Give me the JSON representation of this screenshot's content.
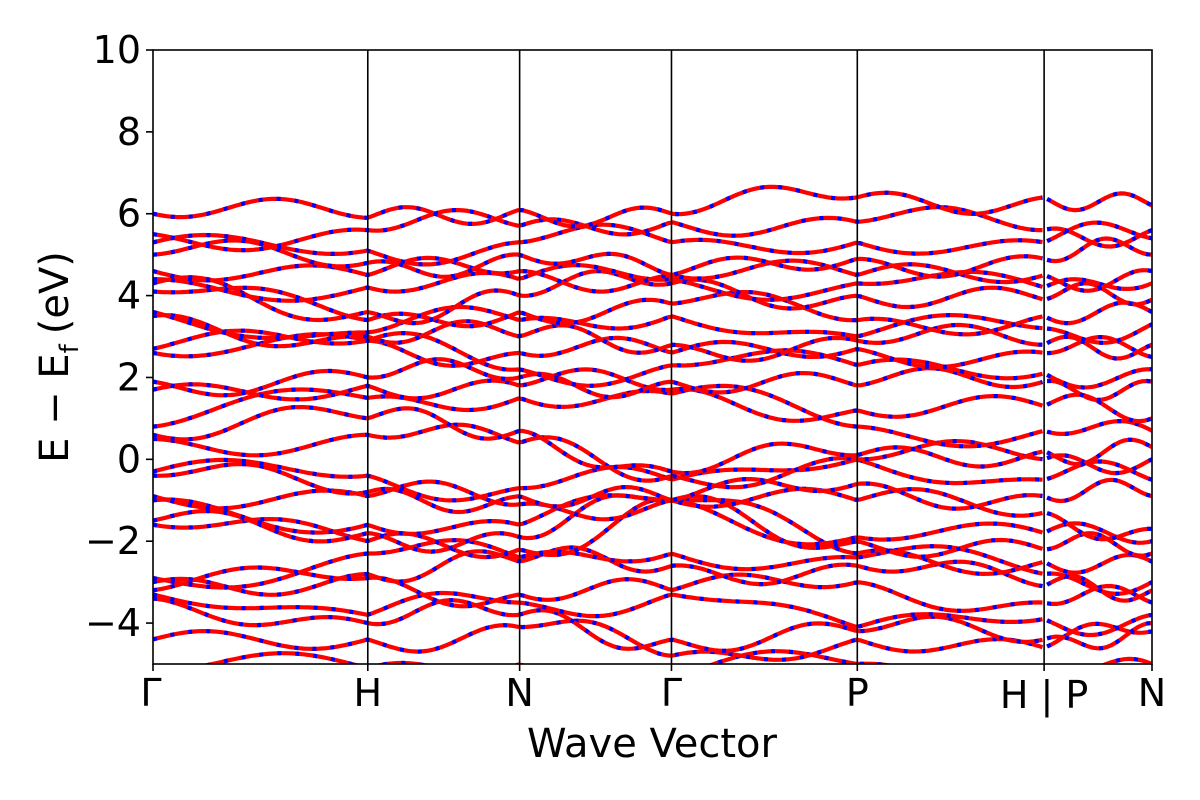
{
  "chart_data": {
    "type": "line",
    "title": "",
    "xlabel": "Wave Vector",
    "ylabel": {
      "main": "E − E",
      "subscript": "f",
      "unit": "(eV)"
    },
    "ylim": [
      -5,
      10
    ],
    "yticks": [
      -4,
      -2,
      0,
      2,
      4,
      6,
      8,
      10
    ],
    "ytick_labels": [
      "−4",
      "−2",
      "0",
      "2",
      "4",
      "6",
      "8",
      "10"
    ],
    "xlim": [
      0,
      1
    ],
    "kpoints": [
      {
        "label": "Γ",
        "x": 0.0
      },
      {
        "label": "H",
        "x": 0.215
      },
      {
        "label": "N",
        "x": 0.367
      },
      {
        "label": "Γ",
        "x": 0.519
      },
      {
        "label": "P",
        "x": 0.705
      },
      {
        "label": "H | P",
        "x": 0.892
      },
      {
        "label": "N",
        "x": 1.0
      }
    ],
    "segment_breaks": [
      0.892
    ],
    "series": [
      {
        "color": "#ff0000",
        "style": "solid"
      },
      {
        "color": "#0000ff",
        "style": "dashed"
      }
    ],
    "bands_at_kpoints": [
      [
        -5.2,
        -5.1,
        -5.0,
        -5.3,
        -5.0,
        -5.1,
        -5.0
      ],
      [
        -4.4,
        -4.4,
        -4.1,
        -4.8,
        -4.4,
        -4.6,
        -4.2
      ],
      [
        -3.4,
        -4.0,
        -3.8,
        -4.4,
        -4.2,
        -4.4,
        -4.0
      ],
      [
        -3.3,
        -3.8,
        -3.5,
        -3.3,
        -4.1,
        -3.9,
        -3.8
      ],
      [
        -3.2,
        -2.9,
        -3.3,
        -3.2,
        -3.0,
        -3.5,
        -3.5
      ],
      [
        -3.0,
        -2.8,
        -2.5,
        -2.6,
        -2.6,
        -3.1,
        -3.2
      ],
      [
        -2.9,
        -2.3,
        -2.4,
        -2.3,
        -2.4,
        -2.8,
        -3.0
      ],
      [
        -1.6,
        -2.0,
        -2.2,
        -1.0,
        -2.3,
        -2.5,
        -2.5
      ],
      [
        -1.5,
        -1.8,
        -1.9,
        -1.0,
        -2.0,
        -2.2,
        -2.3
      ],
      [
        -1.0,
        -1.6,
        -1.6,
        -1.0,
        -1.9,
        -1.8,
        -2.0
      ],
      [
        -0.9,
        -0.9,
        -1.1,
        -1.0,
        -1.0,
        -1.3,
        -1.7
      ],
      [
        -0.4,
        -0.8,
        -0.9,
        -1.0,
        -0.6,
        -0.9,
        -0.9
      ],
      [
        -0.3,
        -0.4,
        -0.7,
        -0.5,
        0.0,
        -0.5,
        -0.5
      ],
      [
        0.5,
        0.6,
        0.4,
        -0.4,
        0.0,
        0.0,
        0.0
      ],
      [
        0.6,
        1.0,
        0.7,
        -0.3,
        0.1,
        0.2,
        0.3
      ],
      [
        0.8,
        1.5,
        1.5,
        1.6,
        0.8,
        0.7,
        0.7
      ],
      [
        1.7,
        1.8,
        1.8,
        1.7,
        1.2,
        1.3,
        1.0
      ],
      [
        1.9,
        2.0,
        2.0,
        1.9,
        1.8,
        1.9,
        1.9
      ],
      [
        2.6,
        2.9,
        2.2,
        2.3,
        2.3,
        2.1,
        2.2
      ],
      [
        2.7,
        2.9,
        2.6,
        2.6,
        2.7,
        2.6,
        2.5
      ],
      [
        3.5,
        3.0,
        3.0,
        2.8,
        2.9,
        2.8,
        2.8
      ],
      [
        3.6,
        3.1,
        3.4,
        3.5,
        3.0,
        3.2,
        3.3
      ],
      [
        4.1,
        3.4,
        3.6,
        3.8,
        3.4,
        3.5,
        3.6
      ],
      [
        4.3,
        3.6,
        4.0,
        4.3,
        4.0,
        3.9,
        3.9
      ],
      [
        4.4,
        4.2,
        4.4,
        4.4,
        4.3,
        4.2,
        4.3
      ],
      [
        4.6,
        4.5,
        4.6,
        4.5,
        4.5,
        4.5,
        4.6
      ],
      [
        5.0,
        4.8,
        5.0,
        4.5,
        4.9,
        4.9,
        5.0
      ],
      [
        5.3,
        5.1,
        5.3,
        5.3,
        5.3,
        5.3,
        5.4
      ],
      [
        5.5,
        5.6,
        5.7,
        5.8,
        5.8,
        5.6,
        5.6
      ],
      [
        6.0,
        5.9,
        6.1,
        6.0,
        6.4,
        6.4,
        6.2
      ]
    ]
  }
}
